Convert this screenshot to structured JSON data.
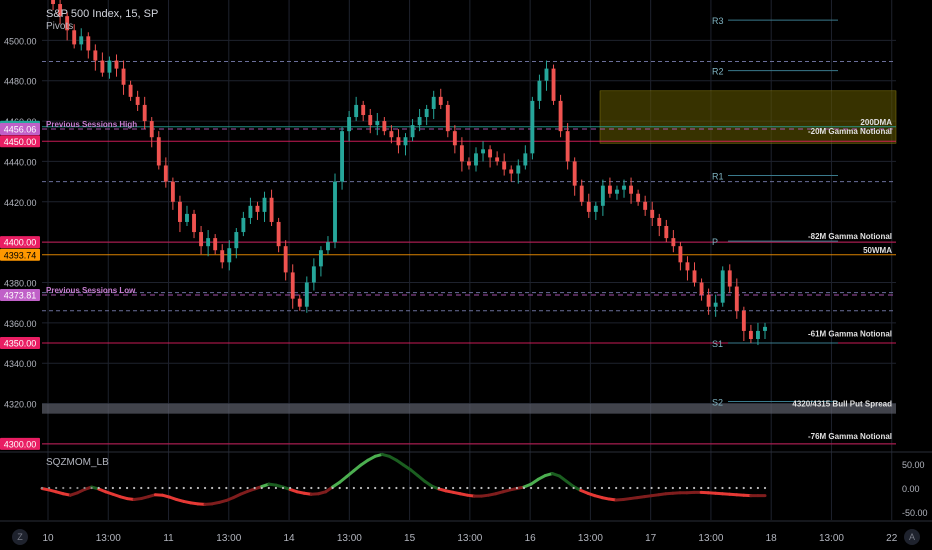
{
  "header": {
    "title": "S&P 500 Index, 15, SP",
    "subtitle": "Pivots"
  },
  "oscillator": {
    "title": "SQZMOM_LB",
    "ticks": [
      {
        "value": 50,
        "label": "50.00"
      },
      {
        "value": 0,
        "label": "0.00"
      },
      {
        "value": -50,
        "label": "-50.00"
      }
    ]
  },
  "corner_buttons": {
    "left": "Z",
    "right": "A"
  },
  "colors": {
    "background": "#000000",
    "bull": "#26a69a",
    "bear": "#ef5350",
    "grid": "#1e222d",
    "pivot_line": "#3a7a8c",
    "magenta_line": "#e91e63",
    "orange_line": "#ff9800",
    "session_dash": "#ce93d8",
    "zone": "#5b5300"
  },
  "chart_data": {
    "type": "candlestick",
    "instrument": "S&P 500 Index",
    "interval": "15",
    "y_axis": {
      "range": [
        4296,
        4520
      ],
      "ticks": [
        4300,
        4320,
        4340,
        4360,
        4380,
        4400,
        4420,
        4440,
        4460,
        4480,
        4500
      ],
      "tick_labels": [
        "4300.00",
        "4320.00",
        "4340.00",
        "4360.00",
        "4380.00",
        "4400.00",
        "4420.00",
        "4440.00",
        "4460.00",
        "4480.00",
        "4500.00"
      ]
    },
    "x_axis": {
      "labels": [
        "10",
        "13:00",
        "11",
        "13:00",
        "14",
        "13:00",
        "15",
        "13:00",
        "16",
        "13:00",
        "17",
        "13:00",
        "18",
        "13:00",
        "22",
        "13"
      ]
    },
    "price_tags": [
      {
        "label": "4457.17",
        "value": 4457.17,
        "color": "#26a69a"
      },
      {
        "label": "4456.06",
        "value": 4456.06,
        "color": "#c060c8"
      },
      {
        "label": "4450.00",
        "value": 4450.0,
        "color": "#e91e63"
      },
      {
        "label": "4400.00",
        "value": 4400.0,
        "color": "#e91e63"
      },
      {
        "label": "4393.74",
        "value": 4393.74,
        "color": "#ff9800"
      },
      {
        "label": "4373.81",
        "value": 4373.81,
        "color": "#c060c8"
      },
      {
        "label": "4350.00",
        "value": 4350.0,
        "color": "#e91e63"
      },
      {
        "label": "4300.00",
        "value": 4300.0,
        "color": "#e91e63"
      }
    ],
    "pivots": [
      {
        "label": "R3",
        "value": 4510
      },
      {
        "label": "R2",
        "value": 4485
      },
      {
        "label": "R1",
        "value": 4433
      },
      {
        "label": "P",
        "value": 4400.5
      },
      {
        "label": "S1",
        "value": 4350
      },
      {
        "label": "S2",
        "value": 4321
      }
    ],
    "annotations": [
      {
        "label": "Previous Sessions High",
        "value": 4456.06
      },
      {
        "label": "Previous Sessions Low",
        "value": 4373.81
      },
      {
        "label": "200DMA",
        "value": 4457.17
      },
      {
        "label": "-20M Gamma Notional",
        "value": 4452.5
      },
      {
        "label": "-82M Gamma Notional",
        "value": 4400.5
      },
      {
        "label": "50WMA",
        "value": 4393.74
      },
      {
        "label": "-61M Gamma Notional",
        "value": 4352.2
      },
      {
        "label": "4320/4315 Bull Put Spread",
        "value": 4317.5
      },
      {
        "label": "-76M Gamma Notional",
        "value": 4301.5
      }
    ],
    "zone": {
      "low": 4449,
      "high": 4475
    },
    "dashed_levels": [
      4489.5,
      4430,
      4375,
      4366
    ],
    "closes": [
      4522,
      4518,
      4512,
      4505,
      4498,
      4502,
      4495,
      4490,
      4484,
      4490,
      4486,
      4478,
      4472,
      4468,
      4460,
      4452,
      4438,
      4430,
      4420,
      4410,
      4414,
      4405,
      4398,
      4402,
      4396,
      4390,
      4397,
      4405,
      4412,
      4418,
      4415,
      4422,
      4410,
      4398,
      4385,
      4372,
      4368,
      4380,
      4388,
      4396,
      4400,
      4430,
      4455,
      4462,
      4468,
      4463,
      4458,
      4460,
      4455,
      4452,
      4448,
      4452,
      4458,
      4462,
      4466,
      4472,
      4468,
      4455,
      4448,
      4440,
      4438,
      4444,
      4446,
      4442,
      4440,
      4436,
      4434,
      4438,
      4444,
      4470,
      4480,
      4486,
      4470,
      4455,
      4440,
      4428,
      4420,
      4415,
      4418,
      4428,
      4424,
      4426,
      4428,
      4424,
      4420,
      4416,
      4412,
      4408,
      4402,
      4398,
      4390,
      4386,
      4380,
      4374,
      4368,
      4370,
      4386,
      4378,
      4366,
      4356,
      4352,
      4356,
      4358
    ],
    "momentum": [
      -1,
      -4,
      -8,
      -12,
      -15,
      -10,
      -3,
      2,
      -2,
      -8,
      -13,
      -18,
      -22,
      -24,
      -22,
      -18,
      -14,
      -15,
      -19,
      -24,
      -28,
      -31,
      -33,
      -34,
      -33,
      -30,
      -26,
      -20,
      -13,
      -7,
      -2,
      3,
      8,
      6,
      2,
      -3,
      -8,
      -11,
      -13,
      -12,
      -8,
      2,
      12,
      24,
      36,
      48,
      58,
      66,
      70,
      66,
      58,
      48,
      38,
      26,
      14,
      4,
      -2,
      -6,
      -9,
      -12,
      -15,
      -17,
      -17,
      -15,
      -12,
      -8,
      -4,
      -1,
      2,
      8,
      18,
      26,
      30,
      25,
      14,
      3,
      -5,
      -11,
      -16,
      -20,
      -23,
      -25,
      -24,
      -22,
      -20,
      -18,
      -16,
      -14,
      -12,
      -11,
      -10,
      -10,
      -9,
      -9,
      -10,
      -11,
      -12,
      -13,
      -14,
      -15,
      -16,
      -16,
      -16
    ]
  }
}
